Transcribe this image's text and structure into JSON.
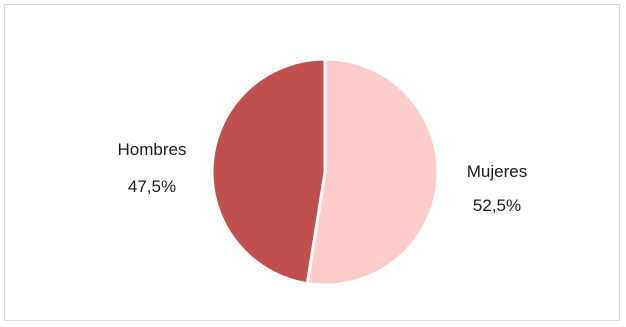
{
  "chart_data": {
    "type": "pie",
    "title": "",
    "slices": [
      {
        "label": "Mujeres",
        "value": 52.5,
        "value_label": "52,5%",
        "color": "#ffcccc"
      },
      {
        "label": "Hombres",
        "value": 47.5,
        "value_label": "47,5%",
        "color": "#c0504d"
      }
    ]
  }
}
